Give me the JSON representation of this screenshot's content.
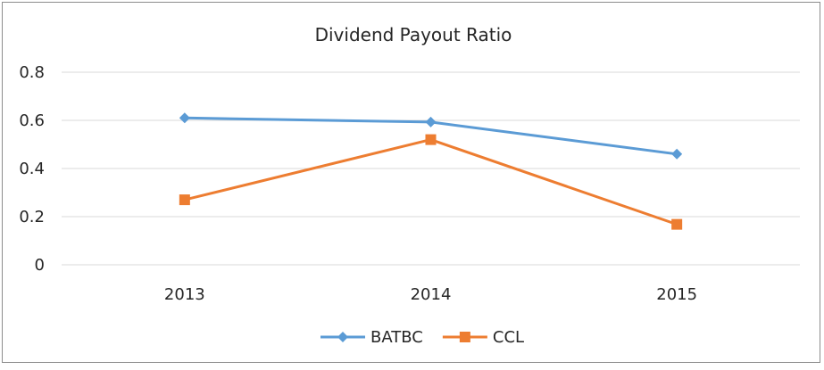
{
  "chart_data": {
    "type": "line",
    "title": "Dividend Payout Ratio",
    "xlabel": "",
    "ylabel": "",
    "categories": [
      "2013",
      "2014",
      "2015"
    ],
    "ylim": [
      0,
      0.8
    ],
    "yticks": [
      "0",
      "0.2",
      "0.4",
      "0.6",
      "0.8"
    ],
    "grid": true,
    "legend_position": "bottom",
    "series": [
      {
        "name": "BATBC",
        "values": [
          0.61,
          0.593,
          0.46
        ],
        "color": "#5b9bd5",
        "marker": "diamond"
      },
      {
        "name": "CCL",
        "values": [
          0.27,
          0.52,
          0.168
        ],
        "color": "#ed7d31",
        "marker": "square"
      }
    ]
  }
}
